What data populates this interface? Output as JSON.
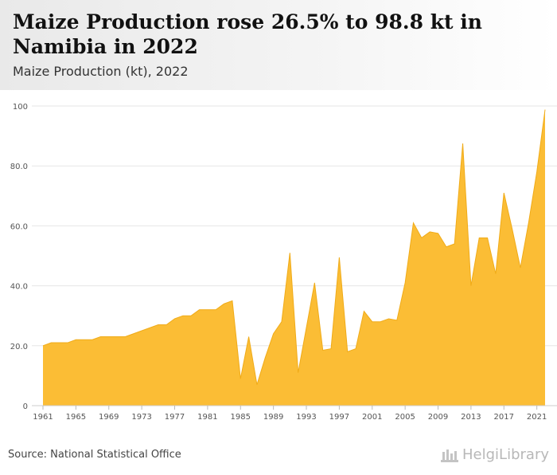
{
  "header": {
    "title": "Maize Production rose 26.5% to 98.8 kt in Namibia in 2022",
    "subtitle": "Maize Production (kt), 2022"
  },
  "footer": {
    "source": "Source: National Statistical Office",
    "brand": "HelgiLibrary"
  },
  "colors": {
    "area_fill": "#fbbd35",
    "area_stroke": "#f0ab18",
    "grid": "#e6e6e6",
    "axis_text": "#555555"
  },
  "chart_data": {
    "type": "area",
    "title": "Maize Production rose 26.5% to 98.8 kt in Namibia in 2022",
    "subtitle": "Maize Production (kt), 2022",
    "xlabel": "",
    "ylabel": "",
    "ylim": [
      0,
      100
    ],
    "yticks": [
      0,
      20.0,
      40.0,
      60.0,
      80.0,
      100
    ],
    "ytick_labels": [
      "0",
      "20.0",
      "40.0",
      "60.0",
      "80.0",
      "100"
    ],
    "xticks": [
      1961,
      1965,
      1969,
      1973,
      1977,
      1981,
      1985,
      1989,
      1993,
      1997,
      2001,
      2005,
      2009,
      2013,
      2017,
      2021
    ],
    "xtick_labels": [
      "1961",
      "1965",
      "1969",
      "1973",
      "1977",
      "1981",
      "1985",
      "1989",
      "1993",
      "1997",
      "2001",
      "2005",
      "2009",
      "2013",
      "2017",
      "2021"
    ],
    "grid": true,
    "legend": "none",
    "x": [
      1961,
      1962,
      1963,
      1964,
      1965,
      1966,
      1967,
      1968,
      1969,
      1970,
      1971,
      1972,
      1973,
      1974,
      1975,
      1976,
      1977,
      1978,
      1979,
      1980,
      1981,
      1982,
      1983,
      1984,
      1985,
      1986,
      1987,
      1988,
      1989,
      1990,
      1991,
      1992,
      1993,
      1994,
      1995,
      1996,
      1997,
      1998,
      1999,
      2000,
      2001,
      2002,
      2003,
      2004,
      2005,
      2006,
      2007,
      2008,
      2009,
      2010,
      2011,
      2012,
      2013,
      2014,
      2015,
      2016,
      2017,
      2018,
      2019,
      2020,
      2021,
      2022
    ],
    "series": [
      {
        "values": [
          20,
          21,
          21,
          21,
          22,
          22,
          22,
          23,
          23,
          23,
          23,
          24,
          25,
          26,
          27,
          27,
          29,
          30,
          30,
          32,
          32,
          32,
          34,
          35,
          9,
          23,
          7,
          16,
          24,
          28,
          51,
          11,
          26,
          41,
          18.5,
          19,
          49.5,
          18,
          19,
          31.5,
          28,
          28,
          29,
          28.5,
          41,
          61,
          56,
          58,
          57.5,
          53,
          54,
          87.5,
          40,
          56,
          56,
          44,
          71,
          59,
          46,
          61,
          78,
          98.8
        ]
      }
    ]
  }
}
